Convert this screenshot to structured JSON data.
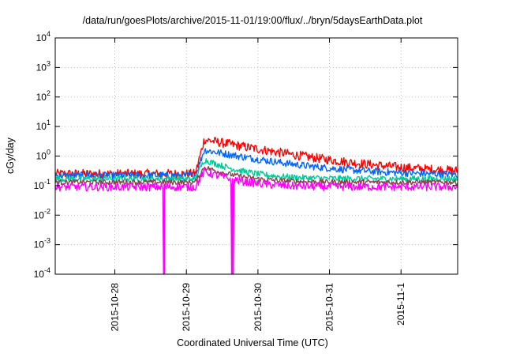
{
  "chart_data": {
    "type": "line",
    "title": "/data/run/goesPlots/archive/2015-11-01/19:00/flux/../bryn/5daysEarthData.plot",
    "xlabel": "Coordinated Universal Time (UTC)",
    "ylabel": "cGy/day",
    "yscale": "log",
    "ylim": [
      0.0001,
      10000
    ],
    "y_ticks": [
      {
        "base": "10",
        "exp": "4",
        "value": 10000
      },
      {
        "base": "10",
        "exp": "3",
        "value": 1000
      },
      {
        "base": "10",
        "exp": "2",
        "value": 100
      },
      {
        "base": "10",
        "exp": "1",
        "value": 10
      },
      {
        "base": "10",
        "exp": "0",
        "value": 1
      },
      {
        "base": "10",
        "exp": "-1",
        "value": 0.1
      },
      {
        "base": "10",
        "exp": "-2",
        "value": 0.01
      },
      {
        "base": "10",
        "exp": "-3",
        "value": 0.001
      },
      {
        "base": "10",
        "exp": "-4",
        "value": 0.0001
      }
    ],
    "xlim": [
      "2015-10-27T04:00",
      "2015-11-01T19:00"
    ],
    "x_ticks": [
      {
        "label": "2015-10-28",
        "date": "2015-10-28T00:00"
      },
      {
        "label": "2015-10-29",
        "date": "2015-10-29T00:00"
      },
      {
        "label": "2015-10-30",
        "date": "2015-10-30T00:00"
      },
      {
        "label": "2015-10-31",
        "date": "2015-10-31T00:00"
      },
      {
        "label": "2015-11-1",
        "date": "2015-11-01T00:00"
      }
    ],
    "grid": true,
    "legend": "none",
    "event": {
      "rise": "2015-10-29T03:00",
      "peak": "2015-10-29T06:00"
    },
    "series": [
      {
        "color": "#ff0000",
        "baseline": 0.25,
        "peak": 3.6,
        "decay_hours": 22,
        "noise": 0.45
      },
      {
        "color": "#0066ff",
        "baseline": 0.22,
        "peak": 1.6,
        "decay_hours": 20,
        "noise": 0.35
      },
      {
        "color": "#00cc99",
        "baseline": 0.17,
        "peak": 0.75,
        "decay_hours": 9,
        "noise": 0.3
      },
      {
        "color": "#884444",
        "baseline": 0.13,
        "peak": 0.42,
        "decay_hours": 9,
        "noise": 0.25
      },
      {
        "color": "#ff00ff",
        "baseline": 0.09,
        "peak": 0.3,
        "decay_hours": 9,
        "noise": 0.4,
        "dropouts": [
          {
            "start": "2015-10-28T16:20",
            "end": "2015-10-28T16:40"
          },
          {
            "start": "2015-10-29T15:00",
            "end": "2015-10-29T15:50"
          }
        ]
      }
    ]
  }
}
